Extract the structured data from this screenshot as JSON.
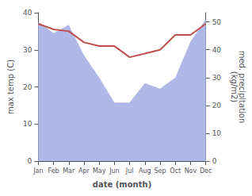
{
  "chart_data": {
    "type": "line",
    "xlabel": "date (month)",
    "ylabel": "max temp (C)",
    "y2label": "med. precipitation\n(kg/m2)",
    "categories": [
      "Jan",
      "Feb",
      "Mar",
      "Apr",
      "May",
      "Jun",
      "Jul",
      "Aug",
      "Sep",
      "Oct",
      "Nov",
      "Dec"
    ],
    "series": [
      {
        "type": "area",
        "color": "#b0b8e8",
        "axis": "y2",
        "values": [
          50,
          46,
          49,
          38,
          30,
          21,
          21,
          28,
          26,
          30,
          43,
          51
        ]
      },
      {
        "type": "line",
        "color": "#c0504d",
        "values": [
          37,
          35.5,
          35,
          32,
          31,
          31,
          28,
          29,
          30,
          34,
          34,
          37
        ]
      }
    ],
    "ylim": [
      0,
      40
    ],
    "yticks": [
      0,
      10,
      20,
      30,
      40
    ],
    "y2lim": [
      0,
      53.33
    ],
    "y2ticks": [
      0,
      10,
      20,
      30,
      40,
      50
    ],
    "grid": false
  }
}
